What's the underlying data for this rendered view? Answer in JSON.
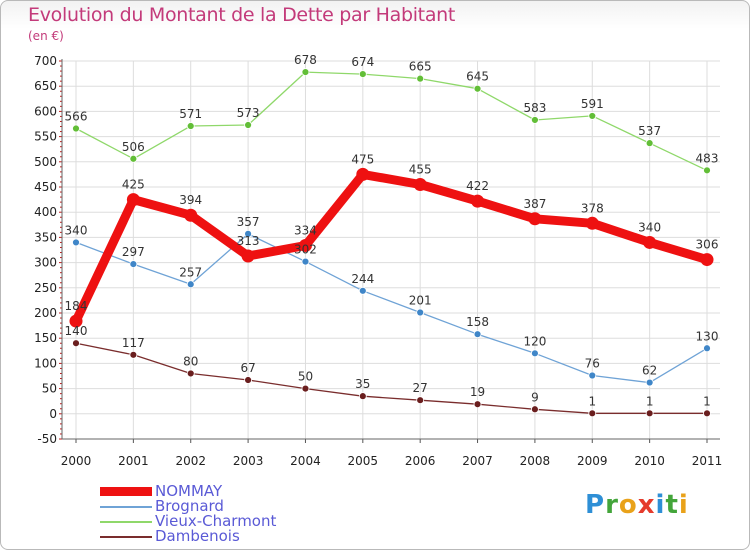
{
  "title": "Evolution du Montant de la Dette par Habitant",
  "subtitle": "(en €)",
  "brand": {
    "text": "Proxiti",
    "letters": [
      {
        "ch": "P",
        "color": "#2e8fd6"
      },
      {
        "ch": "r",
        "color": "#43a53a"
      },
      {
        "ch": "o",
        "color": "#e9a21a"
      },
      {
        "ch": "x",
        "color": "#e53b2c"
      },
      {
        "ch": "i",
        "color": "#2e8fd6"
      },
      {
        "ch": "t",
        "color": "#43a53a"
      },
      {
        "ch": "i",
        "color": "#e9a21a"
      }
    ]
  },
  "chart_data": {
    "type": "line",
    "title": "Evolution du Montant de la Dette par Habitant",
    "subtitle": "(en €)",
    "x": [
      "2000",
      "2001",
      "2002",
      "2003",
      "2004",
      "2005",
      "2006",
      "2007",
      "2008",
      "2009",
      "2010",
      "2011"
    ],
    "ylim": [
      -50,
      700
    ],
    "yticks": [
      "-50",
      "0",
      "50",
      "100",
      "150",
      "200",
      "250",
      "300",
      "350",
      "400",
      "450",
      "500",
      "550",
      "600",
      "650",
      "700"
    ],
    "grid": true,
    "legend_position": "bottom-left",
    "series": [
      {
        "name": "NOMMAY",
        "color": "#ee1111",
        "width": 9,
        "values": [
          184,
          425,
          394,
          313,
          334,
          475,
          455,
          422,
          387,
          378,
          340,
          306
        ],
        "labels": [
          "184",
          "425",
          "394",
          "313",
          "334",
          "475",
          "455",
          "422",
          "387",
          "378",
          "340",
          "306"
        ]
      },
      {
        "name": "Brognard",
        "color": "#6fa3d6",
        "point": "#3f86c8",
        "width": 1.3,
        "values": [
          340,
          297,
          257,
          357,
          302,
          244,
          201,
          158,
          120,
          76,
          62,
          130
        ],
        "labels": [
          "340",
          "297",
          "257",
          "357",
          "302",
          "244",
          "201",
          "158",
          "120",
          "76",
          "62",
          "130"
        ]
      },
      {
        "name": "Vieux-Charmont",
        "color": "#8fd86a",
        "point": "#62be37",
        "width": 1.3,
        "values": [
          566,
          506,
          571,
          573,
          678,
          674,
          665,
          645,
          583,
          591,
          537,
          483
        ],
        "labels": [
          "566",
          "506",
          "571",
          "573",
          "678",
          "674",
          "665",
          "645",
          "583",
          "591",
          "537",
          "483"
        ]
      },
      {
        "name": "Dambenois",
        "color": "#7a2d2d",
        "point": "#6a1e1e",
        "width": 1.3,
        "values": [
          140,
          117,
          80,
          67,
          50,
          35,
          27,
          19,
          9,
          1,
          1,
          1
        ],
        "labels": [
          "140",
          "117",
          "80",
          "67",
          "50",
          "35",
          "27",
          "19",
          "9",
          "1",
          "1",
          "1"
        ]
      }
    ]
  }
}
